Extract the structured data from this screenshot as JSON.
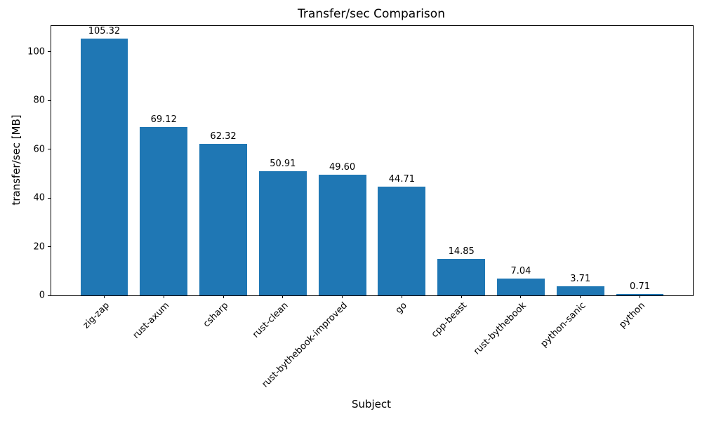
{
  "chart_data": {
    "type": "bar",
    "title": "Transfer/sec Comparison",
    "xlabel": "Subject",
    "ylabel": "transfer/sec [MB]",
    "categories": [
      "zig-zap",
      "rust-axum",
      "csharp",
      "rust-clean",
      "rust-bythebook-improved",
      "go",
      "cpp-beast",
      "rust-bythebook",
      "python-sanic",
      "python"
    ],
    "values": [
      105.32,
      69.12,
      62.32,
      50.91,
      49.6,
      44.71,
      14.85,
      7.04,
      3.71,
      0.71
    ],
    "bar_labels": [
      "105.32",
      "69.12",
      "62.32",
      "50.91",
      "49.60",
      "44.71",
      "14.85",
      "7.04",
      "3.71",
      "0.71"
    ],
    "yticks": [
      0,
      20,
      40,
      60,
      80,
      100
    ],
    "ylim": [
      0,
      110.59
    ],
    "grid": false,
    "legend": "none",
    "bar_color": "#1f77b4",
    "axis_color": "#000000",
    "text_color": "#000000",
    "bar_width_fraction": 0.8,
    "x_margin_fraction": 0.05,
    "xtick_rotation_deg": 45
  }
}
